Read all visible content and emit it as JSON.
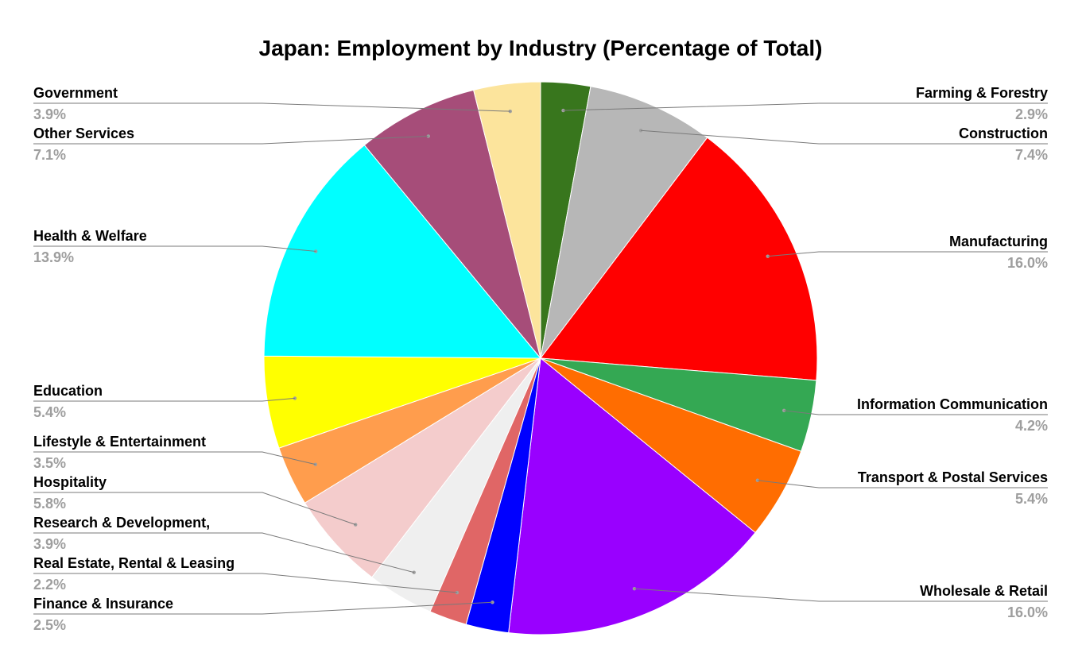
{
  "chart_data": {
    "type": "pie",
    "title": "Japan: Employment by Industry (Percentage of Total)",
    "start_angle_deg": 0,
    "direction": "clockwise",
    "slices": [
      {
        "label": "Farming & Forestry",
        "value": 2.9,
        "display": "2.9%",
        "color": "#38761d"
      },
      {
        "label": "Construction",
        "value": 7.4,
        "display": "7.4%",
        "color": "#b7b7b7"
      },
      {
        "label": "Manufacturing",
        "value": 16.0,
        "display": "16.0%",
        "color": "#ff0000"
      },
      {
        "label": "Information Communication",
        "value": 4.2,
        "display": "4.2%",
        "color": "#34a853"
      },
      {
        "label": "Transport & Postal Services",
        "value": 5.4,
        "display": "5.4%",
        "color": "#ff6d01"
      },
      {
        "label": "Wholesale & Retail",
        "value": 16.0,
        "display": "16.0%",
        "color": "#9900ff"
      },
      {
        "label": "Finance & Insurance",
        "value": 2.5,
        "display": "2.5%",
        "color": "#0000ff"
      },
      {
        "label": "Real Estate, Rental & Leasing",
        "value": 2.2,
        "display": "2.2%",
        "color": "#e06666"
      },
      {
        "label": "Research & Development,",
        "value": 3.9,
        "display": "3.9%",
        "color": "#efefef"
      },
      {
        "label": "Hospitality",
        "value": 5.8,
        "display": "5.8%",
        "color": "#f4cccc"
      },
      {
        "label": "Lifestyle & Entertainment",
        "value": 3.5,
        "display": "3.5%",
        "color": "#ff9d4d"
      },
      {
        "label": "Education",
        "value": 5.4,
        "display": "5.4%",
        "color": "#ffff00"
      },
      {
        "label": "Health & Welfare",
        "value": 13.9,
        "display": "13.9%",
        "color": "#00ffff"
      },
      {
        "label": "Other Services",
        "value": 7.1,
        "display": "7.1%",
        "color": "#a64d79"
      },
      {
        "label": "Government",
        "value": 3.9,
        "display": "3.9%",
        "color": "#fce49c"
      }
    ]
  }
}
